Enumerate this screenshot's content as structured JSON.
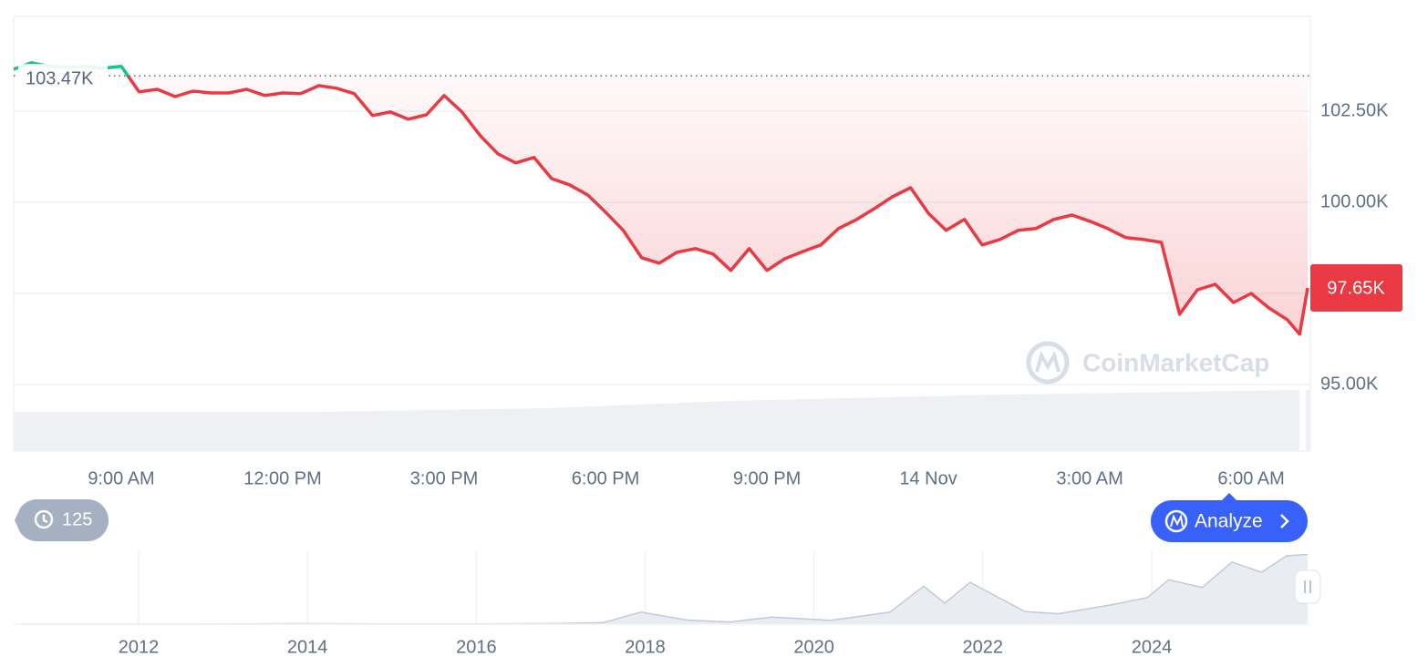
{
  "chart_data": [
    {
      "type": "line",
      "x": [
        7,
        7.33,
        7.67,
        8,
        8.33,
        8.67,
        9,
        9.33,
        9.67,
        10,
        10.33,
        10.67,
        11,
        11.33,
        11.67,
        12,
        12.33,
        12.67,
        13,
        13.33,
        13.67,
        14,
        14.33,
        14.67,
        15,
        15.33,
        15.67,
        16,
        16.33,
        16.67,
        17,
        17.33,
        17.67,
        18,
        18.33,
        18.67,
        19,
        19.33,
        19.67,
        20,
        20.33,
        20.67,
        21,
        21.33,
        21.67,
        22,
        22.33,
        22.67,
        23,
        23.33,
        23.67,
        24,
        24.33,
        24.67,
        25,
        25.33,
        25.67,
        26,
        26.33,
        26.67,
        27,
        27.33,
        27.67,
        28,
        28.33,
        28.67,
        29,
        29.33,
        29.67,
        30,
        30.33,
        30.67,
        30.9,
        31.05
      ],
      "values": [
        103650,
        103830,
        103730,
        103700,
        103730,
        103680,
        103730,
        103030,
        103100,
        102900,
        103050,
        103000,
        103000,
        103100,
        102930,
        103000,
        102980,
        103200,
        103130,
        102980,
        102380,
        102480,
        102280,
        102400,
        102930,
        102480,
        101830,
        101330,
        101080,
        101230,
        100650,
        100480,
        100200,
        99730,
        99230,
        98480,
        98330,
        98630,
        98730,
        98580,
        98130,
        98730,
        98130,
        98450,
        98650,
        98830,
        99280,
        99530,
        99830,
        100150,
        100400,
        99700,
        99230,
        99530,
        98830,
        98980,
        99230,
        99280,
        99530,
        99650,
        99480,
        99280,
        99030,
        98980,
        98900,
        96930,
        97600,
        97750,
        97250,
        97500,
        97100,
        96780,
        96380,
        97650
      ],
      "color": "#ea3943",
      "up_color": "#16c784",
      "xlim": [
        7,
        31.1
      ],
      "xticks": [
        {
          "value": 9,
          "label": "9:00 AM"
        },
        {
          "value": 12,
          "label": "12:00 PM"
        },
        {
          "value": 15,
          "label": "3:00 PM"
        },
        {
          "value": 18,
          "label": "6:00 PM"
        },
        {
          "value": 21,
          "label": "9:00 PM"
        },
        {
          "value": 24,
          "label": "14 Nov"
        },
        {
          "value": 27,
          "label": "3:00 AM"
        },
        {
          "value": 30,
          "label": "6:00 AM"
        }
      ],
      "ylim": [
        95000,
        105100
      ],
      "yticks": [
        {
          "value": 95000,
          "label": "95.00K"
        },
        {
          "value": 97500,
          "label": null
        },
        {
          "value": 100000,
          "label": "100.00K"
        },
        {
          "value": 102500,
          "label": "102.50K"
        }
      ],
      "reference": {
        "value": 103470,
        "label": "103.47K"
      },
      "last_price": {
        "value": 97650,
        "label": "97.65K"
      }
    },
    {
      "type": "area",
      "x": [
        2010.6,
        2013,
        2013.9,
        2015,
        2016,
        2017,
        2017.5,
        2017.95,
        2018.5,
        2019,
        2019.5,
        2020.2,
        2020.9,
        2021.3,
        2021.55,
        2021.85,
        2022.5,
        2022.9,
        2023.5,
        2023.95,
        2024.2,
        2024.6,
        2024.95,
        2025.3,
        2025.6,
        2025.85
      ],
      "values": [
        0,
        100,
        800,
        250,
        400,
        1000,
        2500,
        19000,
        6500,
        3500,
        11000,
        6000,
        19000,
        60000,
        33000,
        66000,
        20000,
        16500,
        30000,
        42000,
        70000,
        58000,
        98000,
        82000,
        108000,
        110000
      ],
      "color": "#c3cad6",
      "xlim": [
        2010.52,
        2025.88
      ],
      "ylim": [
        0,
        115000
      ],
      "xticks": [
        2012,
        2014,
        2016,
        2018,
        2020,
        2022,
        2024
      ]
    }
  ],
  "watermark": "CoinMarketCap",
  "history_badge": 125,
  "analyze_button": "Analyze"
}
